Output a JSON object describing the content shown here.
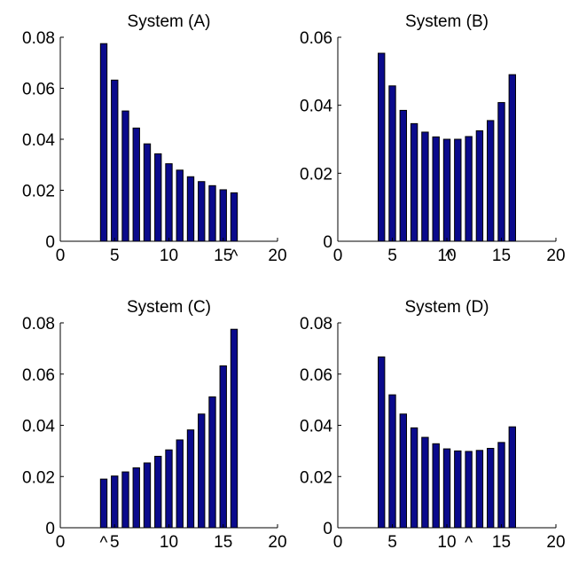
{
  "figure": {
    "bar_fill": "#0a0a8c",
    "bar_stroke": "#000000",
    "axes_color": "#000000",
    "background": "#ffffff"
  },
  "chart_data": [
    {
      "type": "bar",
      "title": "System (A)",
      "xlim": [
        0,
        20
      ],
      "ylim": [
        0,
        0.08
      ],
      "xticks": [
        "0",
        "5",
        "10",
        "15",
        "20"
      ],
      "yticks": [
        "0",
        "0.02",
        "0.04",
        "0.06",
        "0.08"
      ],
      "x": [
        4,
        5,
        6,
        7,
        8,
        9,
        10,
        11,
        12,
        13,
        14,
        15,
        16
      ],
      "values": [
        0.0775,
        0.0632,
        0.0511,
        0.0444,
        0.0382,
        0.0343,
        0.0304,
        0.0279,
        0.0253,
        0.0234,
        0.0218,
        0.0202,
        0.019
      ],
      "marker": {
        "symbol": "^",
        "x": 16
      }
    },
    {
      "type": "bar",
      "title": "System (B)",
      "xlim": [
        0,
        20
      ],
      "ylim": [
        0,
        0.06
      ],
      "xticks": [
        "0",
        "5",
        "10",
        "15",
        "20"
      ],
      "yticks": [
        "0",
        "0.02",
        "0.04",
        "0.06"
      ],
      "x": [
        4,
        5,
        6,
        7,
        8,
        9,
        10,
        11,
        12,
        13,
        14,
        15,
        16
      ],
      "values": [
        0.0553,
        0.0457,
        0.0385,
        0.0346,
        0.0321,
        0.0307,
        0.03,
        0.03,
        0.0308,
        0.0325,
        0.0355,
        0.0408,
        0.049
      ],
      "marker": {
        "symbol": "^",
        "x": 10.2
      }
    },
    {
      "type": "bar",
      "title": "System (C)",
      "xlim": [
        0,
        20
      ],
      "ylim": [
        0,
        0.08
      ],
      "xticks": [
        "0",
        "5",
        "10",
        "15",
        "20"
      ],
      "yticks": [
        "0",
        "0.02",
        "0.04",
        "0.06",
        "0.08"
      ],
      "x": [
        4,
        5,
        6,
        7,
        8,
        9,
        10,
        11,
        12,
        13,
        14,
        15,
        16
      ],
      "values": [
        0.019,
        0.0202,
        0.0218,
        0.0234,
        0.0253,
        0.0279,
        0.0304,
        0.0343,
        0.0382,
        0.0444,
        0.0511,
        0.0632,
        0.0775
      ],
      "marker": {
        "symbol": "^",
        "x": 4
      }
    },
    {
      "type": "bar",
      "title": "System (D)",
      "xlim": [
        0,
        20
      ],
      "ylim": [
        0,
        0.08
      ],
      "xticks": [
        "0",
        "5",
        "10",
        "15",
        "20"
      ],
      "yticks": [
        "0",
        "0.02",
        "0.04",
        "0.06",
        "0.08"
      ],
      "x": [
        4,
        5,
        6,
        7,
        8,
        9,
        10,
        11,
        12,
        13,
        14,
        15,
        16
      ],
      "values": [
        0.0667,
        0.0519,
        0.0444,
        0.039,
        0.0353,
        0.0328,
        0.0308,
        0.03,
        0.0298,
        0.0302,
        0.031,
        0.0333,
        0.0394
      ],
      "marker": {
        "symbol": "^",
        "x": 12
      }
    }
  ]
}
